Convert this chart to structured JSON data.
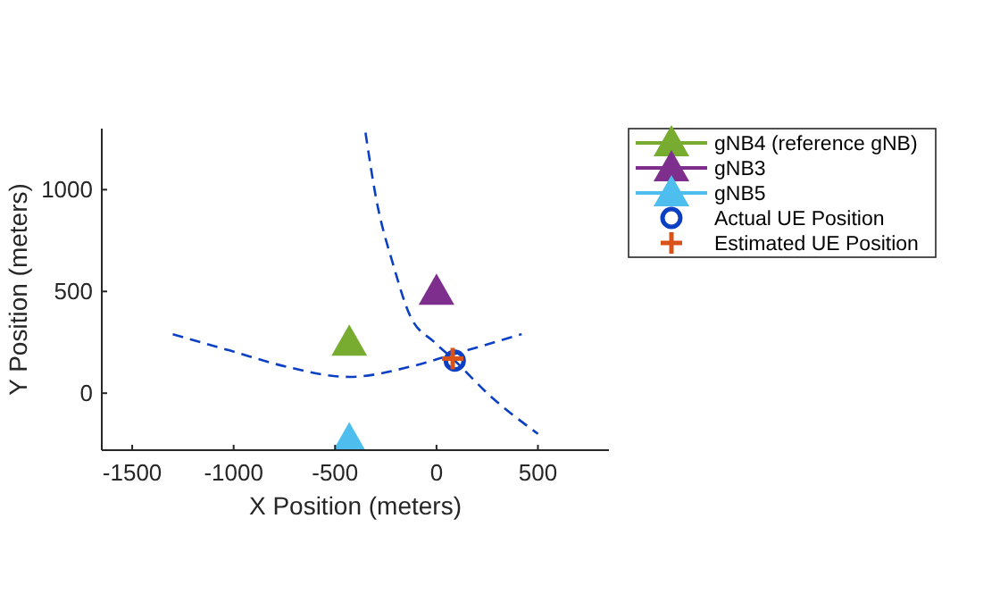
{
  "chart_data": {
    "type": "line",
    "xlabel": "X Position (meters)",
    "ylabel": "Y Position (meters)",
    "xlim": [
      -1650,
      850
    ],
    "xticks": [
      -1500,
      -1000,
      -500,
      0,
      500
    ],
    "ylim": [
      -280,
      1300
    ],
    "yticks": [
      0,
      500,
      1000
    ],
    "legend": "top right",
    "grid": false,
    "series": [
      {
        "x": [
          -1300,
          -1020,
          -740,
          -430,
          -130,
          80,
          420
        ],
        "values": [
          290,
          210,
          130,
          80,
          130,
          190,
          290
        ],
        "color": "#0b3fc4",
        "line_style": "dashed",
        "marker": "none"
      },
      {
        "x": [
          -350,
          -300,
          -210,
          -130,
          -10,
          90,
          250,
          500
        ],
        "values": [
          1280,
          970,
          620,
          380,
          250,
          160,
          0,
          -200
        ],
        "color": "#0b3fc4",
        "line_style": "dashed",
        "marker": "none"
      },
      {
        "name": "gNB4 (reference gNB)",
        "x": [
          -430
        ],
        "values": [
          250
        ],
        "color": "#77ac30",
        "marker": "triangle"
      },
      {
        "name": "gNB3",
        "x": [
          0
        ],
        "values": [
          500
        ],
        "color": "#7e2f8e",
        "marker": "triangle"
      },
      {
        "name": "gNB5",
        "x": [
          -430
        ],
        "values": [
          -230
        ],
        "color": "#4dbeee",
        "marker": "triangle"
      },
      {
        "name": "Actual UE Position",
        "type": "scatter",
        "x": [
          90
        ],
        "values": [
          160
        ],
        "color": "#0b3fc4",
        "marker": "circle"
      },
      {
        "name": "Estimated UE Position",
        "type": "scatter",
        "x": [
          80
        ],
        "values": [
          170
        ],
        "color": "#d95319",
        "marker": "cross"
      }
    ]
  }
}
